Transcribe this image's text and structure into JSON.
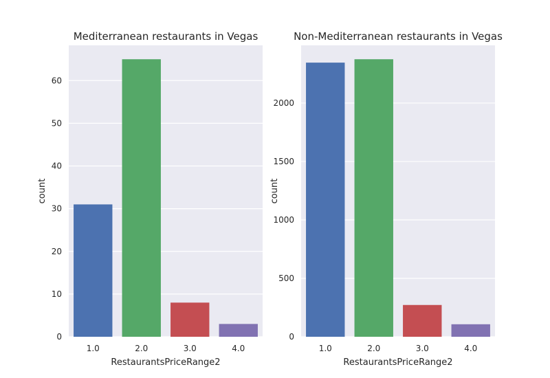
{
  "chart_data": [
    {
      "type": "bar",
      "title": "Mediterranean restaurants in Vegas",
      "xlabel": "RestaurantsPriceRange2",
      "ylabel": "count",
      "categories": [
        "1.0",
        "2.0",
        "3.0",
        "4.0"
      ],
      "values": [
        31,
        65,
        8,
        3
      ],
      "colors": [
        "#4c72b0",
        "#55a868",
        "#c44e52",
        "#8172b2"
      ],
      "ylim": [
        0,
        68.25
      ],
      "yticks": [
        0,
        10,
        20,
        30,
        40,
        50,
        60
      ],
      "grid": true,
      "background": "#eaeaf2"
    },
    {
      "type": "bar",
      "title": "Non-Mediterranean restaurants in Vegas",
      "xlabel": "RestaurantsPriceRange2",
      "ylabel": "count",
      "categories": [
        "1.0",
        "2.0",
        "3.0",
        "4.0"
      ],
      "values": [
        2346,
        2375,
        272,
        107
      ],
      "colors": [
        "#4c72b0",
        "#55a868",
        "#c44e52",
        "#8172b2"
      ],
      "ylim": [
        0,
        2493.75
      ],
      "yticks": [
        0,
        500,
        1000,
        1500,
        2000
      ],
      "grid": true,
      "background": "#eaeaf2"
    }
  ]
}
